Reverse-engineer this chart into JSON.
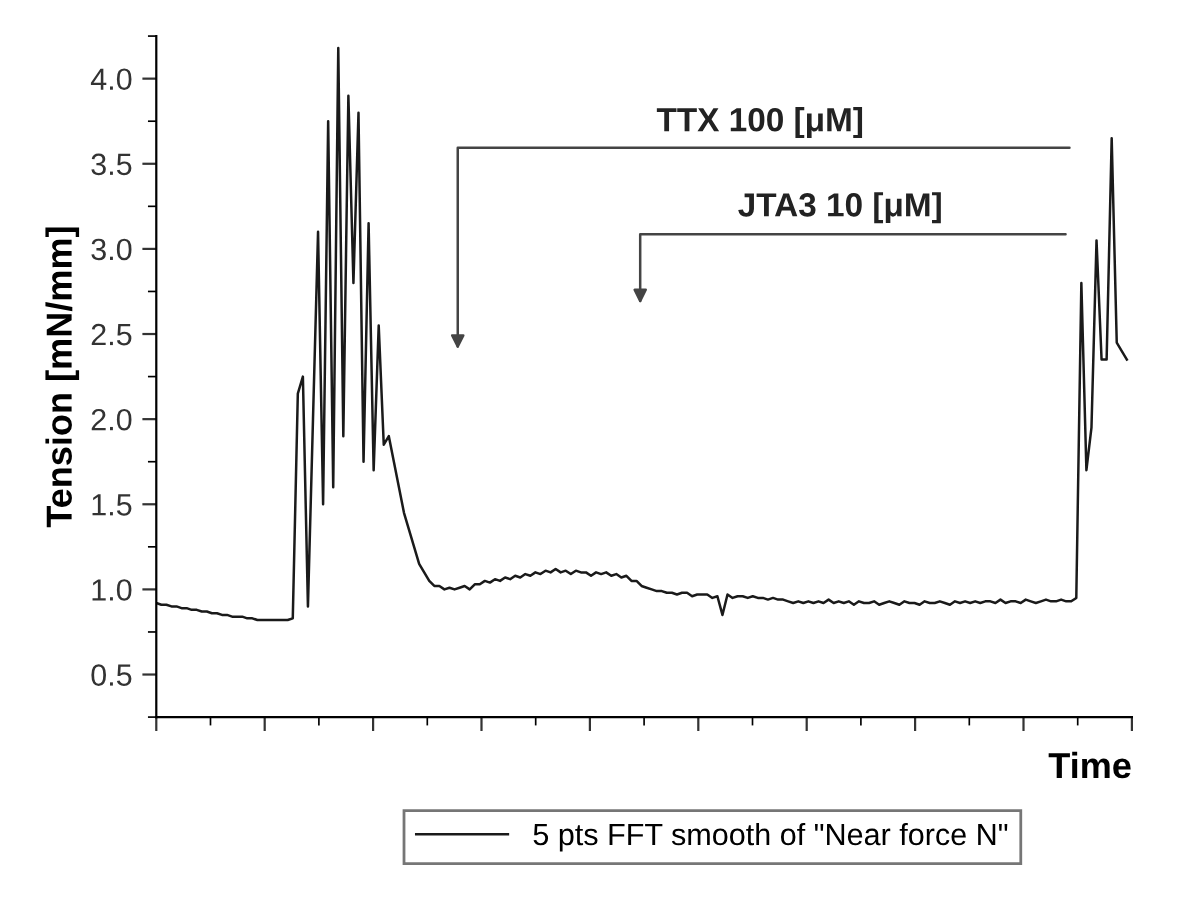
{
  "chart_data": {
    "type": "line",
    "xlabel": "Time",
    "ylabel": "Tension [mN/mm]",
    "annotations": [
      "TTX 100 [μM]",
      "JTA3 10 [μM]"
    ],
    "categories": [
      null,
      null,
      null,
      null,
      null,
      null,
      null,
      null,
      null,
      null,
      null,
      null,
      null,
      null,
      null,
      null,
      null,
      null,
      null,
      null,
      null,
      null,
      null,
      null,
      null,
      null,
      null,
      null,
      null,
      null,
      null,
      null,
      null,
      null,
      null,
      null,
      null,
      null,
      null,
      null,
      null,
      null,
      null,
      null,
      null,
      null,
      null,
      null,
      null,
      null,
      null,
      null,
      null,
      null,
      null,
      null,
      null,
      null,
      null,
      null,
      null,
      null,
      null,
      null,
      null,
      null,
      null,
      null,
      null,
      null,
      null,
      null,
      null,
      null,
      null,
      null,
      null,
      null,
      null,
      null,
      null,
      null,
      null,
      null,
      null,
      null,
      null,
      null,
      null,
      null,
      null,
      null,
      null,
      null,
      null,
      null,
      null,
      null,
      null,
      null,
      null,
      null,
      null,
      null,
      null,
      null,
      null,
      null,
      null,
      null,
      null,
      null,
      null,
      null,
      null,
      null,
      null,
      null,
      null,
      null,
      null,
      null,
      null,
      null,
      null,
      null,
      null,
      null,
      null,
      null,
      null,
      null,
      null,
      null,
      null,
      null,
      null,
      null,
      null,
      null,
      null,
      null,
      null,
      null,
      null,
      null,
      null,
      null,
      null,
      null,
      null,
      null,
      null,
      null,
      null,
      null,
      null,
      null,
      null,
      null,
      null,
      null,
      null,
      null,
      null,
      null,
      null,
      null,
      null,
      null,
      null,
      null,
      null,
      null,
      null,
      null,
      null,
      null,
      null,
      null,
      null,
      null,
      null,
      null,
      null,
      null,
      null,
      null,
      null,
      null,
      null,
      null,
      null
    ],
    "series": [
      {
        "name": "5 pts FFT smooth of \"Near force N\"",
        "color": "#1a1a1a",
        "values": [
          0.92,
          0.91,
          0.91,
          0.9,
          0.9,
          0.89,
          0.89,
          0.88,
          0.88,
          0.87,
          0.87,
          0.86,
          0.86,
          0.85,
          0.85,
          0.84,
          0.84,
          0.84,
          0.83,
          0.83,
          0.82,
          0.82,
          0.82,
          0.82,
          0.82,
          0.82,
          0.82,
          0.83,
          2.15,
          2.25,
          0.9,
          2.0,
          3.1,
          1.5,
          3.75,
          1.6,
          4.18,
          1.9,
          3.9,
          2.8,
          3.8,
          1.75,
          3.15,
          1.7,
          2.55,
          1.85,
          1.9,
          1.75,
          1.6,
          1.45,
          1.35,
          1.25,
          1.15,
          1.1,
          1.05,
          1.02,
          1.02,
          1.0,
          1.01,
          1.0,
          1.01,
          1.02,
          1.0,
          1.03,
          1.03,
          1.05,
          1.04,
          1.06,
          1.05,
          1.07,
          1.06,
          1.08,
          1.07,
          1.09,
          1.08,
          1.1,
          1.09,
          1.11,
          1.1,
          1.12,
          1.1,
          1.11,
          1.09,
          1.11,
          1.1,
          1.1,
          1.08,
          1.1,
          1.09,
          1.1,
          1.08,
          1.09,
          1.07,
          1.08,
          1.05,
          1.05,
          1.02,
          1.01,
          1.0,
          0.99,
          0.99,
          0.98,
          0.98,
          0.97,
          0.98,
          0.98,
          0.96,
          0.97,
          0.97,
          0.97,
          0.95,
          0.96,
          0.85,
          0.97,
          0.95,
          0.96,
          0.96,
          0.95,
          0.96,
          0.95,
          0.95,
          0.94,
          0.95,
          0.94,
          0.94,
          0.93,
          0.92,
          0.93,
          0.92,
          0.93,
          0.92,
          0.93,
          0.92,
          0.94,
          0.92,
          0.93,
          0.92,
          0.93,
          0.91,
          0.93,
          0.92,
          0.92,
          0.93,
          0.91,
          0.92,
          0.93,
          0.92,
          0.91,
          0.93,
          0.92,
          0.92,
          0.91,
          0.93,
          0.92,
          0.92,
          0.93,
          0.92,
          0.91,
          0.93,
          0.92,
          0.93,
          0.92,
          0.93,
          0.92,
          0.93,
          0.93,
          0.92,
          0.94,
          0.92,
          0.93,
          0.93,
          0.92,
          0.94,
          0.93,
          0.92,
          0.93,
          0.94,
          0.93,
          0.93,
          0.94,
          0.93,
          0.93,
          0.95,
          2.8,
          1.7,
          1.95,
          3.05,
          2.35,
          2.35,
          3.65,
          2.45,
          2.4,
          2.35
        ]
      }
    ],
    "ylim": [
      0.25,
      4.25
    ],
    "yticks": [
      0.5,
      {
        "value": 1,
        "label": "1.0"
      },
      1.5,
      {
        "value": 2,
        "label": "2.0"
      },
      2.5,
      {
        "value": 3,
        "label": "3.0"
      },
      3.5,
      {
        "value": 4,
        "label": "4.0"
      }
    ],
    "legend": "bottom",
    "grid": false,
    "marker": "none",
    "line_style": "solid"
  }
}
